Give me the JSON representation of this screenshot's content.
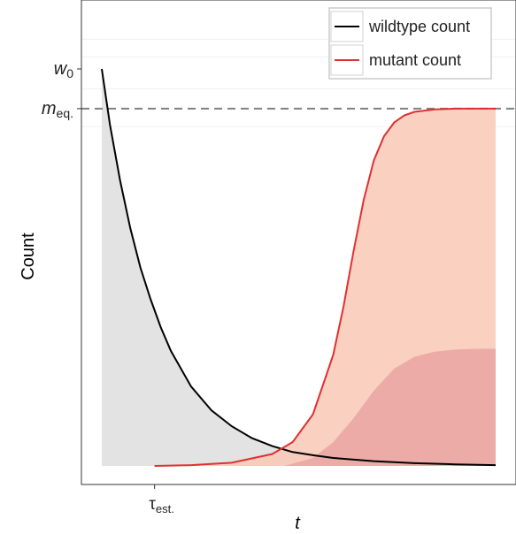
{
  "chart_data": {
    "type": "line",
    "title": "",
    "xlabel": "t",
    "ylabel": "Count",
    "x_ticks": [
      {
        "label": "τ",
        "sub": "est.",
        "x": 1.6
      }
    ],
    "y_ticks": [
      {
        "label": "w",
        "sub": "0",
        "y": 1.0
      },
      {
        "label": "m",
        "sub": "eq.",
        "y": 0.9
      }
    ],
    "xlim": [
      0,
      10
    ],
    "ylim": [
      -0.05,
      1.12
    ],
    "reference_line": {
      "y": 0.9,
      "style": "dashed",
      "color": "#808080"
    },
    "legend": {
      "position": "top-right",
      "entries": [
        {
          "label": "wildtype count",
          "color": "#000000"
        },
        {
          "label": "mutant count",
          "color": "#e03030"
        }
      ]
    },
    "series": [
      {
        "name": "wildtype count",
        "color": "#000000",
        "fill": "#e2e2e2",
        "x": [
          0.3,
          0.5,
          0.75,
          1.0,
          1.25,
          1.5,
          1.75,
          2.0,
          2.5,
          3.0,
          3.5,
          4.0,
          4.5,
          5.0,
          5.5,
          6.0,
          7.0,
          8.0,
          9.0,
          10.0
        ],
        "values": [
          1.0,
          0.86,
          0.72,
          0.6,
          0.5,
          0.42,
          0.35,
          0.29,
          0.2,
          0.14,
          0.1,
          0.07,
          0.05,
          0.035,
          0.027,
          0.02,
          0.012,
          0.007,
          0.004,
          0.002
        ]
      },
      {
        "name": "mutant count",
        "color": "#e03030",
        "fill": "#f9c9b6",
        "x": [
          1.6,
          2.5,
          3.5,
          4.5,
          5.0,
          5.5,
          6.0,
          6.25,
          6.5,
          6.75,
          7.0,
          7.25,
          7.5,
          7.75,
          8.0,
          8.5,
          9.0,
          9.5,
          10.0
        ],
        "values": [
          0.0,
          0.002,
          0.008,
          0.03,
          0.06,
          0.13,
          0.28,
          0.4,
          0.54,
          0.67,
          0.77,
          0.83,
          0.865,
          0.883,
          0.892,
          0.898,
          0.9,
          0.9,
          0.9
        ]
      },
      {
        "name": "",
        "color": "none",
        "fill": "#e9a5a2",
        "x": [
          4.8,
          5.5,
          6.0,
          6.5,
          7.0,
          7.5,
          8.0,
          8.5,
          9.0,
          9.5,
          10.0
        ],
        "values": [
          0.0,
          0.02,
          0.06,
          0.12,
          0.19,
          0.245,
          0.275,
          0.288,
          0.293,
          0.295,
          0.295
        ]
      }
    ],
    "grid": true
  }
}
